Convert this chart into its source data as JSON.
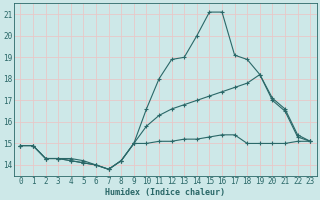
{
  "xlabel": "Humidex (Indice chaleur)",
  "background_color": "#cde8e8",
  "grid_color": "#e8c8c8",
  "line_color": "#2a6868",
  "xlim": [
    -0.5,
    23.5
  ],
  "ylim": [
    13.5,
    21.5
  ],
  "xticks": [
    0,
    1,
    2,
    3,
    4,
    5,
    6,
    7,
    8,
    9,
    10,
    11,
    12,
    13,
    14,
    15,
    16,
    17,
    18,
    19,
    20,
    21,
    22,
    23
  ],
  "yticks": [
    14,
    15,
    16,
    17,
    18,
    19,
    20,
    21
  ],
  "lines": [
    {
      "x": [
        0,
        1,
        2,
        3,
        4,
        5,
        6,
        7,
        8,
        9,
        10,
        11,
        12,
        13,
        14,
        15,
        16,
        17,
        18,
        19,
        20,
        21,
        22,
        23
      ],
      "y": [
        14.9,
        14.9,
        14.3,
        14.3,
        14.3,
        14.2,
        14.0,
        13.8,
        14.2,
        15.0,
        16.6,
        18.0,
        18.9,
        19.0,
        20.0,
        21.1,
        21.1,
        19.1,
        18.9,
        18.2,
        17.0,
        16.5,
        15.3,
        15.1
      ]
    },
    {
      "x": [
        0,
        1,
        2,
        3,
        4,
        5,
        6,
        7,
        8,
        9,
        10,
        11,
        12,
        13,
        14,
        15,
        16,
        17,
        18,
        19,
        20,
        21,
        22,
        23
      ],
      "y": [
        14.9,
        14.9,
        14.3,
        14.3,
        14.2,
        14.1,
        14.0,
        13.8,
        14.2,
        15.0,
        15.8,
        16.3,
        16.6,
        16.8,
        17.0,
        17.2,
        17.4,
        17.6,
        17.8,
        18.2,
        17.1,
        16.6,
        15.4,
        15.1
      ]
    },
    {
      "x": [
        0,
        1,
        2,
        3,
        4,
        5,
        6,
        7,
        8,
        9,
        10,
        11,
        12,
        13,
        14,
        15,
        16,
        17,
        18,
        19,
        20,
        21,
        22,
        23
      ],
      "y": [
        14.9,
        14.9,
        14.3,
        14.3,
        14.2,
        14.1,
        14.0,
        13.8,
        14.2,
        15.0,
        15.0,
        15.1,
        15.1,
        15.2,
        15.2,
        15.3,
        15.4,
        15.4,
        15.0,
        15.0,
        15.0,
        15.0,
        15.1,
        15.1
      ]
    }
  ]
}
